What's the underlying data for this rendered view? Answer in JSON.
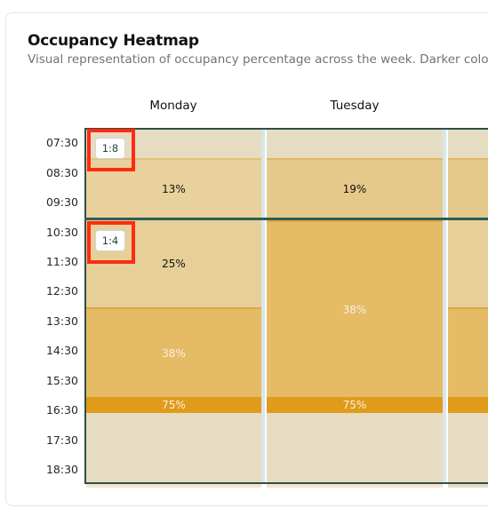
{
  "header": {
    "title": "Occupancy Heatmap",
    "subtitle": "Visual representation of occupancy percentage across the week. Darker colors"
  },
  "days": [
    "Monday",
    "Tuesday"
  ],
  "times": [
    "07:30",
    "08:30",
    "09:30",
    "10:30",
    "11:30",
    "12:30",
    "13:30",
    "14:30",
    "15:30",
    "16:30",
    "17:30",
    "18:30"
  ],
  "ratios": [
    "1:8",
    "1:4"
  ],
  "monday": {
    "b1": "13%",
    "b2": "25%",
    "b3": "38%",
    "b4": "75%"
  },
  "tuesday": {
    "b1": "19%",
    "b2": "38%",
    "b3": "75%"
  },
  "colors": {
    "empty": "#e6dcc1",
    "low": "#e8d19d",
    "mid": "#e5bb66",
    "high": "#e09b1a",
    "divider": "#2b5e5a",
    "highlight": "#ff2a12"
  }
}
